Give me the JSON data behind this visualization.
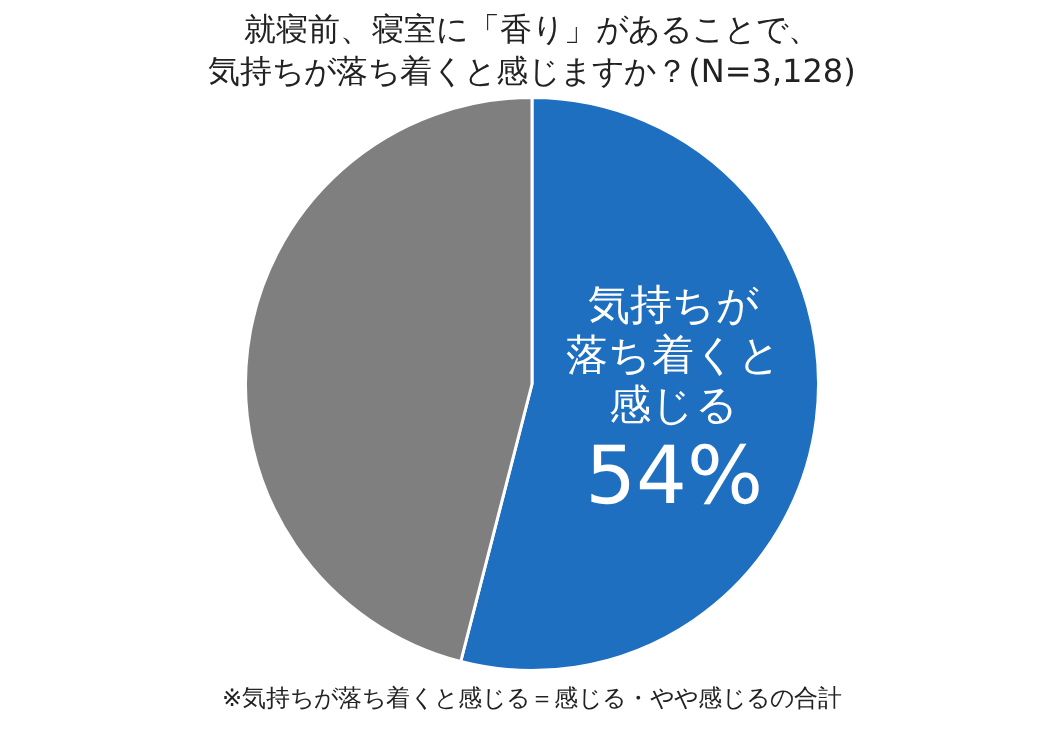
{
  "chart_data": {
    "type": "pie",
    "title": "就寝前、寝室に「香り」があることで、",
    "subtitle": "気持ちが落ち着くと感じますか？(N=3,128)",
    "categories": [
      "気持ちが落ち着くと感じる",
      null
    ],
    "values": [
      54,
      46
    ],
    "colors": [
      "#1f6fc1",
      "#7f7f7f"
    ],
    "value_labels": [
      "54%",
      null
    ],
    "legend": false,
    "annotations": [
      "※気持ちが落ち着くと感じる＝感じる・やや感じるの合計"
    ]
  }
}
